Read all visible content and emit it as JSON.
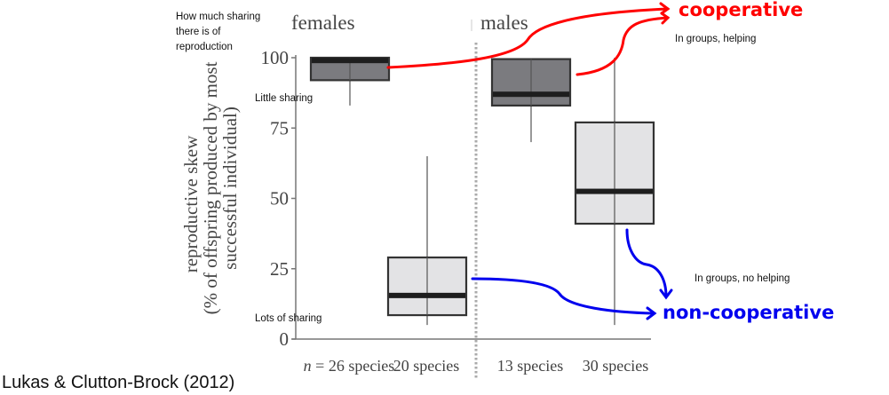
{
  "chart_data": {
    "type": "box",
    "title": "",
    "ylabel_line1": "reproductive skew",
    "ylabel_line2": "(% of offspring produced by most",
    "ylabel_line3": "successful individual)",
    "xlabel": "",
    "ylim": [
      0,
      100
    ],
    "yticks": [
      0,
      25,
      50,
      75,
      100
    ],
    "ytick_labels": [
      "0",
      "25",
      "50",
      "75",
      "100"
    ],
    "groups": [
      {
        "name": "females",
        "label": "females"
      },
      {
        "name": "males",
        "label": "males"
      }
    ],
    "boxes": [
      {
        "group": "females",
        "category": "cooperative",
        "label": "n = 26 species",
        "n_prefix": "n",
        "n_rest": " = 26 species",
        "whisker_low": 83,
        "q1": 92,
        "median": 99,
        "q3": 100,
        "whisker_high": 100,
        "color": "#7b7b7f"
      },
      {
        "group": "females",
        "category": "non-cooperative",
        "label": "20 species",
        "whisker_low": 5,
        "q1": 8.5,
        "median": 15.5,
        "q3": 29,
        "whisker_high": 65,
        "color": "#e3e3e5"
      },
      {
        "group": "males",
        "category": "cooperative",
        "label": "13 species",
        "whisker_low": 70,
        "q1": 83,
        "median": 87,
        "q3": 99.5,
        "whisker_high": 99.5,
        "color": "#7b7b7f"
      },
      {
        "group": "males",
        "category": "non-cooperative",
        "label": "30 species",
        "whisker_low": 5,
        "q1": 41,
        "median": 52.5,
        "q3": 77,
        "whisker_high": 100,
        "color": "#e3e3e5"
      }
    ],
    "grid": false,
    "legend": "none"
  },
  "annotations": {
    "y_axis_note_line1": "How much sharing",
    "y_axis_note_line2": "there is of",
    "y_axis_note_line3": "reproduction",
    "high_note": "Little sharing",
    "low_note": "Lots of sharing",
    "cooperative_label": "cooperative",
    "cooperative_sub": "In groups, helping",
    "noncooperative_label": "non-cooperative",
    "noncooperative_sub": "In groups, no helping",
    "cooperative_color": "#ff0000",
    "noncooperative_color": "#0000ee"
  },
  "citation": "Lukas & Clutton-Brock (2012)"
}
